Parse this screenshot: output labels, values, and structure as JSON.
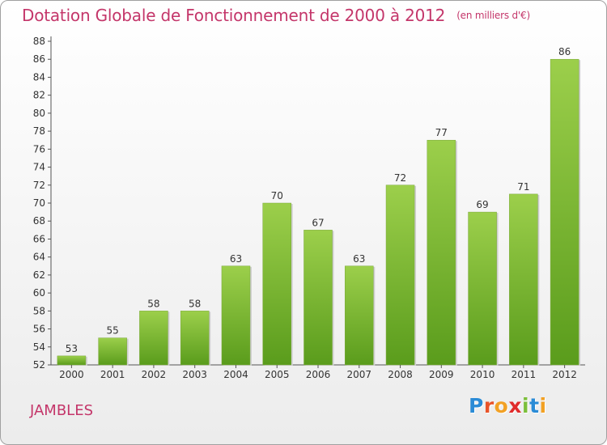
{
  "title": "Dotation Globale de Fonctionnement de 2000 à 2012",
  "unit_note": "(en milliers d'€)",
  "commune": "JAMBLES",
  "logo": {
    "letters": [
      "P",
      "r",
      "o",
      "x",
      "i",
      "t",
      "i"
    ],
    "colors": [
      "#2a8bd6",
      "#e8542a",
      "#f2a124",
      "#e02c2c",
      "#7cbf3a",
      "#2a8bd6",
      "#f2a124"
    ]
  },
  "colors": {
    "bar_top": "#9ccf4b",
    "bar_bottom": "#5a9c1c",
    "title": "#c4366a"
  },
  "chart_data": {
    "type": "bar",
    "categories": [
      "2000",
      "2001",
      "2002",
      "2003",
      "2004",
      "2005",
      "2006",
      "2007",
      "2008",
      "2009",
      "2010",
      "2011",
      "2012"
    ],
    "values": [
      53,
      55,
      58,
      58,
      63,
      70,
      67,
      63,
      72,
      77,
      69,
      71,
      86
    ],
    "ylim": [
      52,
      88
    ],
    "yticks": [
      52,
      54,
      56,
      58,
      60,
      62,
      64,
      66,
      68,
      70,
      72,
      74,
      76,
      78,
      80,
      82,
      84,
      86,
      88
    ],
    "grid": false,
    "legend": "none"
  }
}
